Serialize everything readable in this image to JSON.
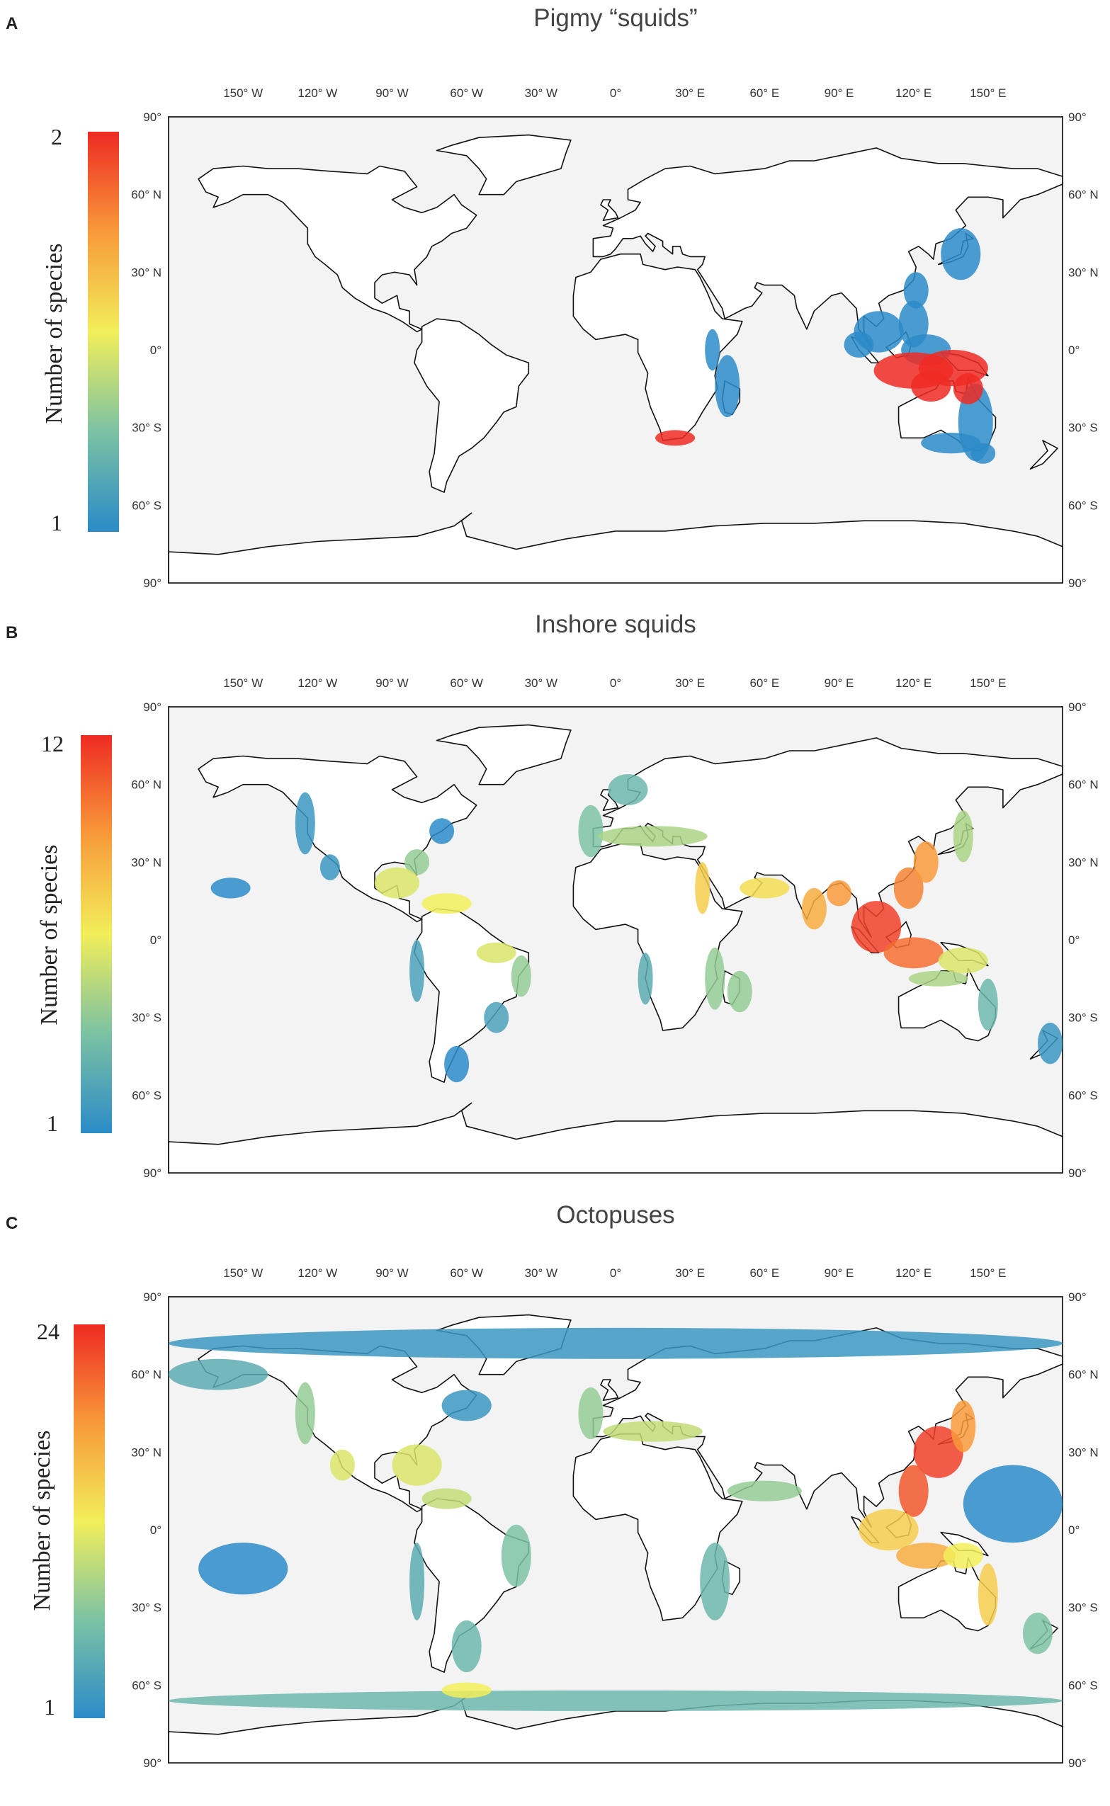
{
  "colorscale": {
    "stops": [
      "#2b8bc8",
      "#7cc2a4",
      "#f2ee5a",
      "#f89a3a",
      "#ee2a23"
    ],
    "label": "Number of species"
  },
  "axes": {
    "lon_ticks": [
      "150° W",
      "120° W",
      "90° W",
      "60° W",
      "30° W",
      "0°",
      "30° E",
      "60° E",
      "90° E",
      "120° E",
      "150° E"
    ],
    "lat_ticks": [
      "90°",
      "60° N",
      "30° N",
      "0°",
      "30° S",
      "60° S",
      "90°"
    ]
  },
  "panels": [
    {
      "letter": "A",
      "title": "Pigmy “squids”",
      "min": "1",
      "max": "2",
      "regions": [
        {
          "lon": 139,
          "lat": 37,
          "rx": 8,
          "ry": 10,
          "v": 0.0
        },
        {
          "lon": 121,
          "lat": 23,
          "rx": 5,
          "ry": 7,
          "v": 0.0
        },
        {
          "lon": 120,
          "lat": 10,
          "rx": 6,
          "ry": 9,
          "v": 0.0
        },
        {
          "lon": 106,
          "lat": 7,
          "rx": 10,
          "ry": 8,
          "v": 0.0
        },
        {
          "lon": 98,
          "lat": 2,
          "rx": 6,
          "ry": 5,
          "v": 0.0
        },
        {
          "lon": 125,
          "lat": 0,
          "rx": 10,
          "ry": 6,
          "v": 0.0
        },
        {
          "lon": 145,
          "lat": -28,
          "rx": 7,
          "ry": 15,
          "v": 0.0
        },
        {
          "lon": 135,
          "lat": -36,
          "rx": 12,
          "ry": 4,
          "v": 0.0
        },
        {
          "lon": 148,
          "lat": -40,
          "rx": 5,
          "ry": 4,
          "v": 0.0
        },
        {
          "lon": 45,
          "lat": -14,
          "rx": 5,
          "ry": 12,
          "v": 0.0
        },
        {
          "lon": 39,
          "lat": 0,
          "rx": 3,
          "ry": 8,
          "v": 0.0
        },
        {
          "lon": 24,
          "lat": -34,
          "rx": 8,
          "ry": 3,
          "v": 1.0
        },
        {
          "lon": 120,
          "lat": -8,
          "rx": 16,
          "ry": 7,
          "v": 1.0
        },
        {
          "lon": 136,
          "lat": -7,
          "rx": 14,
          "ry": 7,
          "v": 1.0
        },
        {
          "lon": 127,
          "lat": -14,
          "rx": 8,
          "ry": 6,
          "v": 1.0
        },
        {
          "lon": 142,
          "lat": -15,
          "rx": 6,
          "ry": 6,
          "v": 1.0
        }
      ]
    },
    {
      "letter": "B",
      "title": "Inshore squids",
      "min": "1",
      "max": "12",
      "regions": [
        {
          "lon": -125,
          "lat": 45,
          "rx": 4,
          "ry": 12,
          "v": 0.05
        },
        {
          "lon": -115,
          "lat": 28,
          "rx": 4,
          "ry": 5,
          "v": 0.05
        },
        {
          "lon": -155,
          "lat": 20,
          "rx": 8,
          "ry": 4,
          "v": 0.0
        },
        {
          "lon": -70,
          "lat": 42,
          "rx": 5,
          "ry": 5,
          "v": 0.0
        },
        {
          "lon": -80,
          "lat": 30,
          "rx": 5,
          "ry": 5,
          "v": 0.3
        },
        {
          "lon": -88,
          "lat": 22,
          "rx": 9,
          "ry": 6,
          "v": 0.45
        },
        {
          "lon": -68,
          "lat": 14,
          "rx": 10,
          "ry": 4,
          "v": 0.5
        },
        {
          "lon": -48,
          "lat": -5,
          "rx": 8,
          "ry": 4,
          "v": 0.45
        },
        {
          "lon": -38,
          "lat": -14,
          "rx": 4,
          "ry": 8,
          "v": 0.3
        },
        {
          "lon": -48,
          "lat": -30,
          "rx": 5,
          "ry": 6,
          "v": 0.1
        },
        {
          "lon": -80,
          "lat": -12,
          "rx": 3,
          "ry": 12,
          "v": 0.1
        },
        {
          "lon": -64,
          "lat": -48,
          "rx": 5,
          "ry": 7,
          "v": 0.0
        },
        {
          "lon": -10,
          "lat": 42,
          "rx": 5,
          "ry": 10,
          "v": 0.25
        },
        {
          "lon": 15,
          "lat": 40,
          "rx": 22,
          "ry": 4,
          "v": 0.35
        },
        {
          "lon": 5,
          "lat": 58,
          "rx": 8,
          "ry": 6,
          "v": 0.2
        },
        {
          "lon": 35,
          "lat": 20,
          "rx": 3,
          "ry": 10,
          "v": 0.6
        },
        {
          "lon": 12,
          "lat": -15,
          "rx": 3,
          "ry": 10,
          "v": 0.15
        },
        {
          "lon": 40,
          "lat": -15,
          "rx": 4,
          "ry": 12,
          "v": 0.3
        },
        {
          "lon": 60,
          "lat": 20,
          "rx": 10,
          "ry": 4,
          "v": 0.55
        },
        {
          "lon": 80,
          "lat": 12,
          "rx": 5,
          "ry": 8,
          "v": 0.7
        },
        {
          "lon": 90,
          "lat": 18,
          "rx": 5,
          "ry": 5,
          "v": 0.75
        },
        {
          "lon": 105,
          "lat": 5,
          "rx": 10,
          "ry": 10,
          "v": 0.95
        },
        {
          "lon": 118,
          "lat": 20,
          "rx": 6,
          "ry": 8,
          "v": 0.8
        },
        {
          "lon": 125,
          "lat": 30,
          "rx": 5,
          "ry": 8,
          "v": 0.75
        },
        {
          "lon": 140,
          "lat": 40,
          "rx": 4,
          "ry": 10,
          "v": 0.35
        },
        {
          "lon": 120,
          "lat": -5,
          "rx": 12,
          "ry": 6,
          "v": 0.85
        },
        {
          "lon": 140,
          "lat": -8,
          "rx": 10,
          "ry": 5,
          "v": 0.45
        },
        {
          "lon": 150,
          "lat": -25,
          "rx": 4,
          "ry": 10,
          "v": 0.2
        },
        {
          "lon": 130,
          "lat": -15,
          "rx": 12,
          "ry": 3,
          "v": 0.35
        },
        {
          "lon": 175,
          "lat": -40,
          "rx": 5,
          "ry": 8,
          "v": 0.05
        },
        {
          "lon": 50,
          "lat": -20,
          "rx": 5,
          "ry": 8,
          "v": 0.3
        }
      ]
    },
    {
      "letter": "C",
      "title": "Octopuses",
      "min": "1",
      "max": "24",
      "regions": [
        {
          "lon": 0,
          "lat": 72,
          "rx": 180,
          "ry": 6,
          "v": 0.05
        },
        {
          "lon": -160,
          "lat": 60,
          "rx": 20,
          "ry": 6,
          "v": 0.15
        },
        {
          "lon": -125,
          "lat": 45,
          "rx": 4,
          "ry": 12,
          "v": 0.3
        },
        {
          "lon": -110,
          "lat": 25,
          "rx": 5,
          "ry": 6,
          "v": 0.45
        },
        {
          "lon": -60,
          "lat": 48,
          "rx": 10,
          "ry": 6,
          "v": 0.05
        },
        {
          "lon": -80,
          "lat": 25,
          "rx": 10,
          "ry": 8,
          "v": 0.45
        },
        {
          "lon": -68,
          "lat": 12,
          "rx": 10,
          "ry": 4,
          "v": 0.4
        },
        {
          "lon": -40,
          "lat": -10,
          "rx": 6,
          "ry": 12,
          "v": 0.25
        },
        {
          "lon": -60,
          "lat": -45,
          "rx": 6,
          "ry": 10,
          "v": 0.2
        },
        {
          "lon": -80,
          "lat": -20,
          "rx": 3,
          "ry": 15,
          "v": 0.15
        },
        {
          "lon": -150,
          "lat": -15,
          "rx": 18,
          "ry": 10,
          "v": 0.0
        },
        {
          "lon": -10,
          "lat": 45,
          "rx": 5,
          "ry": 10,
          "v": 0.3
        },
        {
          "lon": 15,
          "lat": 38,
          "rx": 20,
          "ry": 4,
          "v": 0.4
        },
        {
          "lon": 40,
          "lat": -20,
          "rx": 6,
          "ry": 15,
          "v": 0.2
        },
        {
          "lon": 60,
          "lat": 15,
          "rx": 15,
          "ry": 4,
          "v": 0.3
        },
        {
          "lon": 130,
          "lat": 30,
          "rx": 10,
          "ry": 10,
          "v": 0.95
        },
        {
          "lon": 140,
          "lat": 40,
          "rx": 5,
          "ry": 10,
          "v": 0.75
        },
        {
          "lon": 120,
          "lat": 15,
          "rx": 6,
          "ry": 10,
          "v": 0.9
        },
        {
          "lon": 110,
          "lat": 0,
          "rx": 12,
          "ry": 8,
          "v": 0.6
        },
        {
          "lon": 125,
          "lat": -10,
          "rx": 12,
          "ry": 5,
          "v": 0.7
        },
        {
          "lon": 150,
          "lat": -25,
          "rx": 4,
          "ry": 12,
          "v": 0.6
        },
        {
          "lon": 140,
          "lat": -10,
          "rx": 8,
          "ry": 5,
          "v": 0.5
        },
        {
          "lon": 170,
          "lat": -40,
          "rx": 6,
          "ry": 8,
          "v": 0.25
        },
        {
          "lon": 160,
          "lat": 10,
          "rx": 20,
          "ry": 15,
          "v": 0.0
        },
        {
          "lon": 0,
          "lat": -66,
          "rx": 180,
          "ry": 4,
          "v": 0.2
        },
        {
          "lon": -60,
          "lat": -62,
          "rx": 10,
          "ry": 3,
          "v": 0.5
        }
      ]
    }
  ]
}
